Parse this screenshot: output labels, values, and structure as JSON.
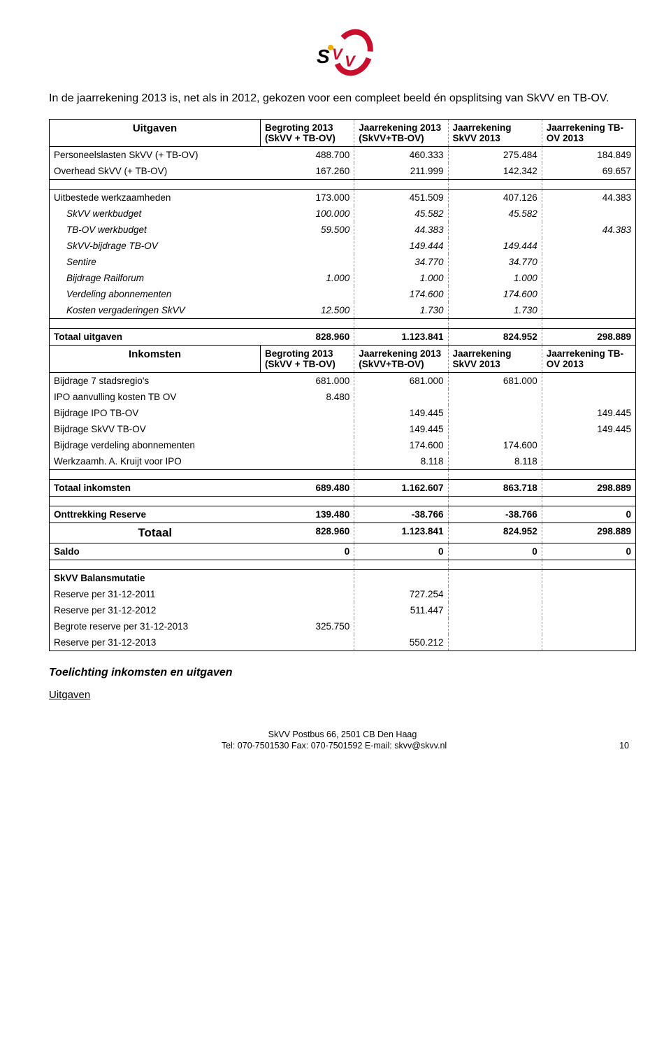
{
  "intro": "In de jaarrekening 2013 is, net als in 2012, gekozen voor een compleet beeld én opsplitsing van SkVV en TB-OV.",
  "headers": {
    "uitgaven": "Uitgaven",
    "inkomsten": "Inkomsten",
    "col1": "Begroting 2013 (SkVV + TB-OV)",
    "col2": "Jaarrekening 2013 (SkVV+TB-OV)",
    "col3": "Jaarrekening SkVV 2013",
    "col4": "Jaarrekening TB-OV 2013"
  },
  "uitgaven_rows": [
    {
      "label": "Personeelslasten SkVV (+ TB-OV)",
      "v": [
        "488.700",
        "460.333",
        "275.484",
        "184.849"
      ],
      "indent": false
    },
    {
      "label": "Overhead SkVV (+ TB-OV)",
      "v": [
        "167.260",
        "211.999",
        "142.342",
        "69.657"
      ],
      "indent": false
    }
  ],
  "werkzaamheden_header": {
    "label": "Uitbestede werkzaamheden",
    "v": [
      "173.000",
      "451.509",
      "407.126",
      "44.383"
    ]
  },
  "werkzaamheden_rows": [
    {
      "label": "SkVV werkbudget",
      "v": [
        "100.000",
        "45.582",
        "45.582",
        ""
      ],
      "indent": true
    },
    {
      "label": "TB-OV werkbudget",
      "v": [
        "59.500",
        "44.383",
        "",
        "44.383"
      ],
      "indent": true
    },
    {
      "label": "SkVV-bijdrage TB-OV",
      "v": [
        "",
        "149.444",
        "149.444",
        ""
      ],
      "indent": true
    },
    {
      "label": "Sentire",
      "v": [
        "",
        "34.770",
        "34.770",
        ""
      ],
      "indent": true
    },
    {
      "label": "Bijdrage Railforum",
      "v": [
        "1.000",
        "1.000",
        "1.000",
        ""
      ],
      "indent": true
    },
    {
      "label": "Verdeling abonnementen",
      "v": [
        "",
        "174.600",
        "174.600",
        ""
      ],
      "indent": true
    },
    {
      "label": "Kosten vergaderingen SkVV",
      "v": [
        "12.500",
        "1.730",
        "1.730",
        ""
      ],
      "indent": true
    }
  ],
  "totaal_uitgaven": {
    "label": "Totaal uitgaven",
    "v": [
      "828.960",
      "1.123.841",
      "824.952",
      "298.889"
    ]
  },
  "inkomsten_rows": [
    {
      "label": "Bijdrage 7 stadsregio's",
      "v": [
        "681.000",
        "681.000",
        "681.000",
        ""
      ]
    },
    {
      "label": "IPO aanvulling kosten TB OV",
      "v": [
        "8.480",
        "",
        "",
        ""
      ]
    },
    {
      "label": "Bijdrage IPO TB-OV",
      "v": [
        "",
        "149.445",
        "",
        "149.445"
      ]
    },
    {
      "label": "Bijdrage SkVV TB-OV",
      "v": [
        "",
        "149.445",
        "",
        "149.445"
      ]
    },
    {
      "label": "Bijdrage verdeling abonnementen",
      "v": [
        "",
        "174.600",
        "174.600",
        ""
      ]
    },
    {
      "label": "Werkzaamh. A. Kruijt voor IPO",
      "v": [
        "",
        "8.118",
        "8.118",
        ""
      ]
    }
  ],
  "totaal_inkomsten": {
    "label": "Totaal inkomsten",
    "v": [
      "689.480",
      "1.162.607",
      "863.718",
      "298.889"
    ]
  },
  "onttrekking": {
    "label": "Onttrekking Reserve",
    "v": [
      "139.480",
      "-38.766",
      "-38.766",
      "0"
    ]
  },
  "totaal": {
    "label": "Totaal",
    "v": [
      "828.960",
      "1.123.841",
      "824.952",
      "298.889"
    ]
  },
  "saldo": {
    "label": "Saldo",
    "v": [
      "0",
      "0",
      "0",
      "0"
    ]
  },
  "balans_header": "SkVV Balansmutatie",
  "balans_rows": [
    {
      "label": "Reserve per 31-12-2011",
      "v": [
        "",
        "727.254",
        "",
        ""
      ]
    },
    {
      "label": "Reserve per 31-12-2012",
      "v": [
        "",
        "511.447",
        "",
        ""
      ]
    },
    {
      "label": "Begrote reserve per 31-12-2013",
      "v": [
        "325.750",
        "",
        "",
        ""
      ]
    },
    {
      "label": "Reserve per 31-12-2013",
      "v": [
        "",
        "550.212",
        "",
        ""
      ]
    }
  ],
  "toelichting": "Toelichting inkomsten en uitgaven",
  "uitgaven_sub": "Uitgaven",
  "footer": {
    "line1": "SkVV  Postbus 66, 2501 CB Den Haag",
    "line2": "Tel: 070-7501530     Fax: 070-7501592     E-mail: skvv@skvv.nl",
    "page": "10"
  },
  "colors": {
    "text": "#000000",
    "bg": "#ffffff",
    "dash": "#999999",
    "logo_red": "#c8102e",
    "logo_yellow": "#f2a900"
  }
}
